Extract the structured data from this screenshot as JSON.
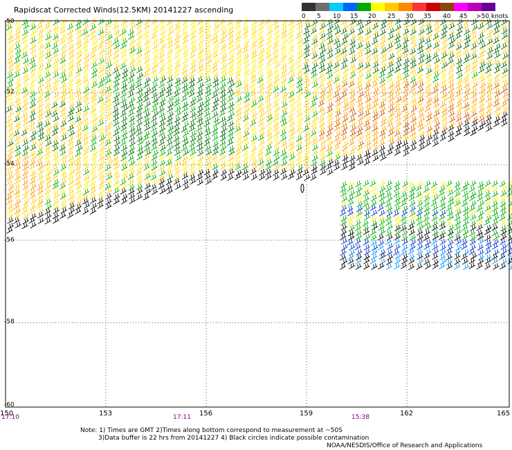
{
  "title": "Rapidscat Corrected Winds(12.5KM) 20141227 ascending",
  "colorbar": {
    "colors": [
      "#333333",
      "#6e6e6e",
      "#00ccff",
      "#0066ff",
      "#00aa00",
      "#ffff00",
      "#ffcc00",
      "#ff8800",
      "#ff3333",
      "#cc0000",
      "#8b4513",
      "#ff00ff",
      "#bb00bb",
      "#660099"
    ],
    "labels": [
      "0",
      "5",
      "10",
      "15",
      "20",
      "25",
      "30",
      "35",
      "40",
      "45",
      ">50 knots"
    ]
  },
  "axes": {
    "lon_labels": [
      "150",
      "153",
      "156",
      "159",
      "162",
      "165"
    ],
    "lat_labels": [
      "-50",
      "-52",
      "-54",
      "-56",
      "-58",
      "-60"
    ]
  },
  "times": [
    "17:10",
    "17:11",
    "15:38"
  ],
  "notes": {
    "line1": "Note: 1) Times are GMT 2)Times along bottom correspond to measurement at ~50S",
    "line2": "3)Data buffer is 22 hrs from 20141227 4) Black circles indicate possible contamination",
    "credit": "NOAA/NESDIS/Office of Research and Applications"
  },
  "wind_colors": {
    "light": "#000000",
    "dark_green": "#006600",
    "green": "#00aa00",
    "yellow": "#ffee00",
    "gold": "#ffcc00",
    "orange": "#ff9900",
    "dark_orange": "#cc5500",
    "blue": "#0033cc",
    "cyan": "#0099ff"
  }
}
